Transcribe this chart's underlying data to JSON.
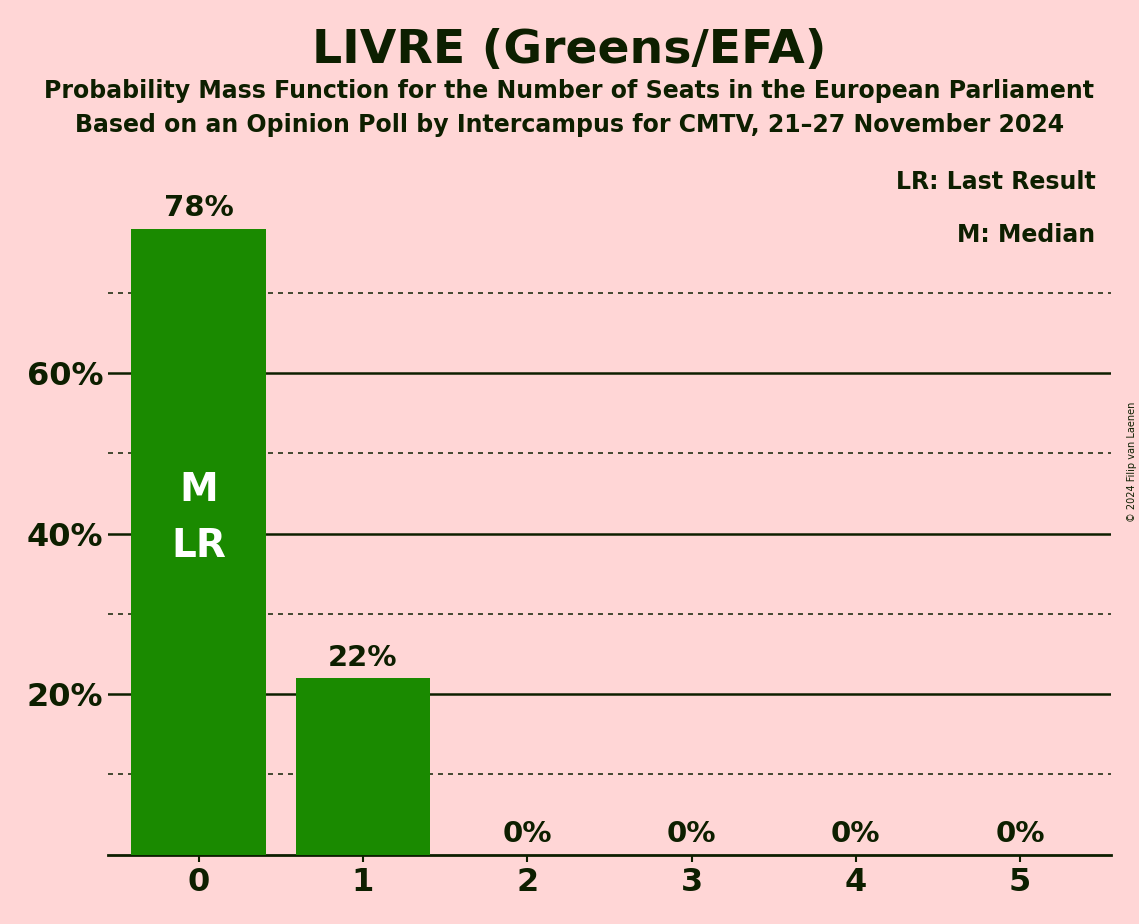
{
  "title": "LIVRE (Greens/EFA)",
  "subtitle1": "Probability Mass Function for the Number of Seats in the European Parliament",
  "subtitle2": "Based on an Opinion Poll by Intercampus for CMTV, 21–27 November 2024",
  "copyright": "© 2024 Filip van Laenen",
  "categories": [
    0,
    1,
    2,
    3,
    4,
    5
  ],
  "values": [
    0.78,
    0.22,
    0.0,
    0.0,
    0.0,
    0.0
  ],
  "bar_color": "#1a8a00",
  "bar_labels": [
    "78%",
    "22%",
    "0%",
    "0%",
    "0%",
    "0%"
  ],
  "background_color": "#ffd6d6",
  "text_color": "#0d1f00",
  "ylabel_ticks": [
    0.2,
    0.4,
    0.6
  ],
  "ylabel_tick_labels": [
    "20%",
    "40%",
    "60%"
  ],
  "ylim": [
    0,
    0.875
  ],
  "legend_lr": "LR: Last Result",
  "legend_m": "M: Median",
  "median_label": "M",
  "lr_label": "LR",
  "median_seat": 0,
  "lr_seat": 0,
  "dotted_grid_values": [
    0.1,
    0.3,
    0.5,
    0.7
  ],
  "solid_grid_values": [
    0.2,
    0.4,
    0.6
  ]
}
